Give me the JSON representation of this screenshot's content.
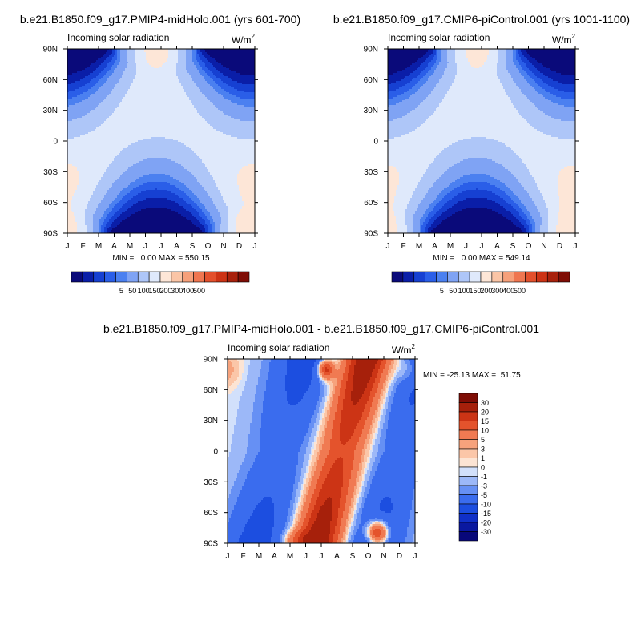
{
  "figure_kind": "latitude-month filled contour plots",
  "chart_data": [
    {
      "type": "heatmap",
      "title": "b.e21.B1850.f09_g17.PMIP4-midHolo.001 (yrs 601-700)",
      "subtitle": "Incoming solar radiation",
      "units_base": "W/m",
      "units_exp": "2",
      "xlabel": "",
      "ylabel": "",
      "x_ticks": [
        "J",
        "F",
        "M",
        "A",
        "M",
        "J",
        "J",
        "A",
        "S",
        "O",
        "N",
        "D",
        "J"
      ],
      "y_ticks": [
        "90N",
        "60N",
        "30N",
        "0",
        "30S",
        "60S",
        "90S"
      ],
      "ylim": [
        -90,
        90
      ],
      "stats_text": "MIN =   0.00 MAX = 550.15",
      "min": 0.0,
      "max": 550.15,
      "levels": [
        5,
        50,
        100,
        150,
        200,
        300,
        400,
        500
      ],
      "level_labels": [
        "5",
        "50",
        "100",
        "150",
        "200",
        "300",
        "400",
        "500"
      ],
      "colors": [
        "#0a0a7a",
        "#0a1ea8",
        "#1640d2",
        "#2a5ee8",
        "#4b80f0",
        "#7fa3f4",
        "#aec6f8",
        "#dfe9fb",
        "#fde6d7",
        "#fbc5a6",
        "#f6a07a",
        "#ef7650",
        "#e3502c",
        "#cc3315",
        "#a8210c",
        "#7f0d05"
      ],
      "colorbar_labels": [
        "5",
        "50",
        "100",
        "150",
        "200",
        "300",
        "400",
        "500"
      ],
      "colorbar_orientation": "horizontal"
    },
    {
      "type": "heatmap",
      "title": "b.e21.B1850.f09_g17.CMIP6-piControl.001 (yrs 1001-1100)",
      "subtitle": "Incoming solar radiation",
      "units_base": "W/m",
      "units_exp": "2",
      "x_ticks": [
        "J",
        "F",
        "M",
        "A",
        "M",
        "J",
        "J",
        "A",
        "S",
        "O",
        "N",
        "D",
        "J"
      ],
      "y_ticks": [
        "90N",
        "60N",
        "30N",
        "0",
        "30S",
        "60S",
        "90S"
      ],
      "ylim": [
        -90,
        90
      ],
      "stats_text": "MIN =   0.00 MAX = 549.14",
      "min": 0.0,
      "max": 549.14,
      "levels": [
        5,
        50,
        100,
        150,
        200,
        300,
        400,
        500
      ],
      "colors": [
        "#0a0a7a",
        "#0a1ea8",
        "#1640d2",
        "#2a5ee8",
        "#4b80f0",
        "#7fa3f4",
        "#aec6f8",
        "#dfe9fb",
        "#fde6d7",
        "#fbc5a6",
        "#f6a07a",
        "#ef7650",
        "#e3502c",
        "#cc3315",
        "#a8210c",
        "#7f0d05"
      ],
      "colorbar_labels": [
        "5",
        "50",
        "100",
        "150",
        "200",
        "300",
        "400",
        "500"
      ],
      "colorbar_orientation": "horizontal"
    },
    {
      "type": "heatmap",
      "title": "b.e21.B1850.f09_g17.PMIP4-midHolo.001 - b.e21.B1850.f09_g17.CMIP6-piControl.001",
      "subtitle": "Incoming solar radiation",
      "units_base": "W/m",
      "units_exp": "2",
      "x_ticks": [
        "J",
        "F",
        "M",
        "A",
        "M",
        "J",
        "J",
        "A",
        "S",
        "O",
        "N",
        "D",
        "J"
      ],
      "y_ticks": [
        "90N",
        "60N",
        "30N",
        "0",
        "30S",
        "60S",
        "90S"
      ],
      "ylim": [
        -90,
        90
      ],
      "stats_text": "MIN = -25.13 MAX =  51.75",
      "min": -25.13,
      "max": 51.75,
      "levels": [
        -30,
        -20,
        -15,
        -10,
        -5,
        -3,
        -1,
        0,
        1,
        3,
        5,
        10,
        15,
        20,
        30
      ],
      "colors": [
        "#08087a",
        "#0a18a0",
        "#1030c8",
        "#1c4ee0",
        "#3a6cee",
        "#6690f4",
        "#9cb8f8",
        "#d2e0fb",
        "#fce4d4",
        "#fbc6a8",
        "#f6a27c",
        "#f07a52",
        "#e4532c",
        "#cc3415",
        "#a6200b",
        "#7f0d05"
      ],
      "colorbar_labels": [
        "30",
        "20",
        "15",
        "10",
        "5",
        "3",
        "1",
        "0",
        "-1",
        "-3",
        "-5",
        "-10",
        "-15",
        "-20",
        "-30"
      ],
      "colorbar_orientation": "vertical"
    }
  ]
}
